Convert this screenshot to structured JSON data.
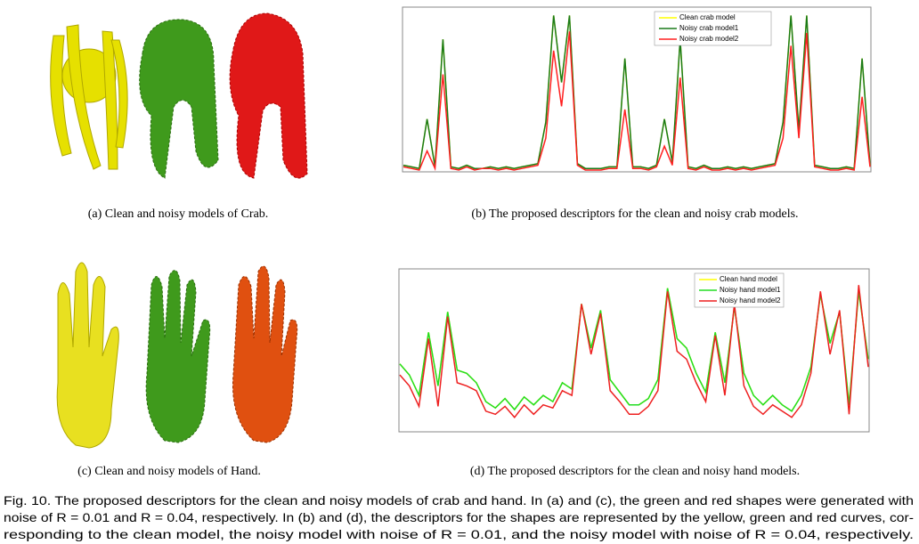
{
  "chart_data": [
    {
      "type": "line",
      "caption": "(b) The proposed descriptors for the clean and noisy crab models.",
      "ylim": [
        0,
        100
      ],
      "legend": "upper right",
      "series": [
        {
          "name": "Clean crab model",
          "color": "#ffff00",
          "values": [
            3,
            2,
            1,
            32,
            2,
            82,
            2,
            1,
            3,
            1,
            1,
            2,
            1,
            2,
            1,
            2,
            3,
            4,
            30,
            97,
            55,
            97,
            4,
            1,
            1,
            1,
            2,
            2,
            70,
            2,
            2,
            1,
            3,
            32,
            5,
            82,
            2,
            1,
            3,
            1,
            1,
            2,
            1,
            2,
            1,
            2,
            3,
            4,
            30,
            97,
            25,
            97,
            3,
            2,
            1,
            1,
            2,
            1,
            70,
            3
          ]
        },
        {
          "name": "Noisy crab model1",
          "color": "#1a7a1a",
          "values": [
            3,
            2,
            1,
            32,
            2,
            82,
            2,
            1,
            3,
            1,
            1,
            2,
            1,
            2,
            1,
            2,
            3,
            4,
            30,
            97,
            55,
            97,
            4,
            1,
            1,
            1,
            2,
            2,
            70,
            2,
            2,
            1,
            3,
            32,
            5,
            82,
            2,
            1,
            3,
            1,
            1,
            2,
            1,
            2,
            1,
            2,
            3,
            4,
            30,
            97,
            25,
            97,
            3,
            2,
            1,
            1,
            2,
            1,
            70,
            3
          ]
        },
        {
          "name": "Noisy crab model2",
          "color": "#ff2020",
          "values": [
            2,
            1,
            0,
            12,
            1,
            60,
            1,
            0,
            2,
            0,
            1,
            1,
            0,
            1,
            0,
            1,
            2,
            3,
            20,
            75,
            40,
            87,
            3,
            0,
            0,
            0,
            1,
            1,
            38,
            1,
            1,
            0,
            2,
            15,
            3,
            58,
            1,
            0,
            2,
            0,
            0,
            1,
            0,
            1,
            0,
            1,
            2,
            3,
            20,
            78,
            20,
            86,
            2,
            1,
            0,
            0,
            1,
            0,
            46,
            2
          ]
        }
      ]
    },
    {
      "type": "line",
      "caption": "(d) The proposed descriptors for the clean and noisy hand models.",
      "ylim": [
        0,
        100
      ],
      "legend": "upper right",
      "series": [
        {
          "name": "Clean hand model",
          "color": "#ffff00",
          "values": [
            42,
            35,
            22,
            62,
            28,
            75,
            38,
            36,
            30,
            18,
            14,
            20,
            13,
            21,
            16,
            22,
            18,
            30,
            26,
            80,
            52,
            76,
            32,
            24,
            16,
            16,
            20,
            32,
            90,
            58,
            52,
            36,
            24,
            62,
            30,
            78,
            36,
            22,
            16,
            22,
            16,
            12,
            22,
            40,
            86,
            55,
            75,
            16,
            88,
            45
          ]
        },
        {
          "name": "Noisy hand model1",
          "color": "#22dd22",
          "values": [
            42,
            35,
            22,
            62,
            28,
            75,
            38,
            36,
            30,
            18,
            14,
            20,
            13,
            21,
            16,
            22,
            18,
            30,
            26,
            80,
            52,
            76,
            32,
            24,
            16,
            16,
            20,
            32,
            90,
            58,
            52,
            36,
            24,
            62,
            30,
            78,
            36,
            22,
            16,
            22,
            16,
            12,
            22,
            40,
            86,
            55,
            75,
            16,
            88,
            45
          ]
        },
        {
          "name": "Noisy hand model2",
          "color": "#ee2020",
          "values": [
            35,
            28,
            15,
            58,
            15,
            72,
            30,
            28,
            25,
            12,
            10,
            15,
            8,
            16,
            10,
            16,
            14,
            25,
            22,
            80,
            48,
            74,
            25,
            18,
            10,
            10,
            15,
            25,
            88,
            50,
            45,
            30,
            18,
            60,
            22,
            80,
            28,
            15,
            10,
            16,
            12,
            8,
            16,
            36,
            88,
            48,
            76,
            10,
            92,
            40
          ]
        }
      ]
    }
  ],
  "images": [
    {
      "caption": "(a) Clean and noisy models of Crab."
    },
    {
      "caption": "(c) Clean and noisy models of Hand."
    }
  ],
  "caption": [
    "Fig. 10. The proposed descriptors for the clean and noisy models of crab and hand. In (a) and (c), the green and red shapes were generated with",
    "noise of R = 0.01 and R = 0.04, respectively. In (b) and (d), the descriptors for the shapes are represented by the yellow, green and red curves, cor-",
    "responding to the clean model, the noisy model with noise of R = 0.01, and the noisy model with noise of R = 0.04, respectively."
  ]
}
